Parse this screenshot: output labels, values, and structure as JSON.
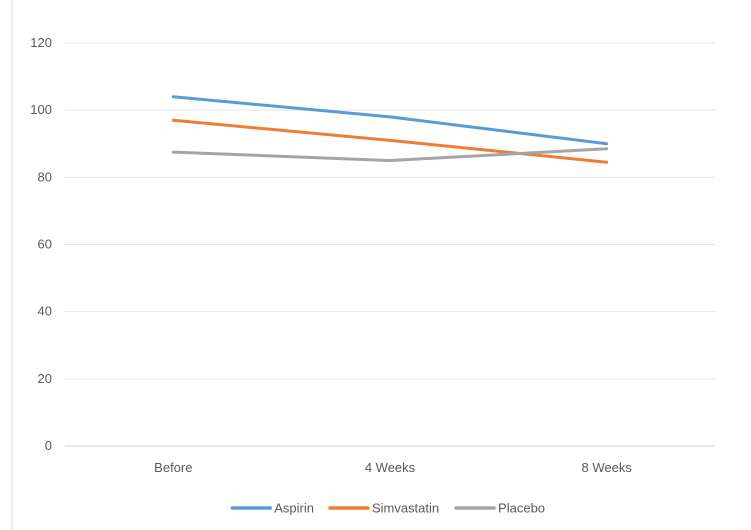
{
  "chart_data": {
    "type": "line",
    "title": "",
    "xlabel": "",
    "ylabel": "",
    "categories": [
      "Before",
      "4 Weeks",
      "8 Weeks"
    ],
    "ylim": [
      0,
      120
    ],
    "yticks": [
      0,
      20,
      40,
      60,
      80,
      100,
      120
    ],
    "grid": true,
    "legend_position": "bottom",
    "series": [
      {
        "name": "Aspirin",
        "color": "#5B9BD5",
        "values": [
          104,
          98,
          90
        ]
      },
      {
        "name": "Simvastatin",
        "color": "#ED7D31",
        "values": [
          97,
          91,
          84.5
        ]
      },
      {
        "name": "Placebo",
        "color": "#A5A5A5",
        "values": [
          87.5,
          85,
          88.5
        ]
      }
    ]
  }
}
